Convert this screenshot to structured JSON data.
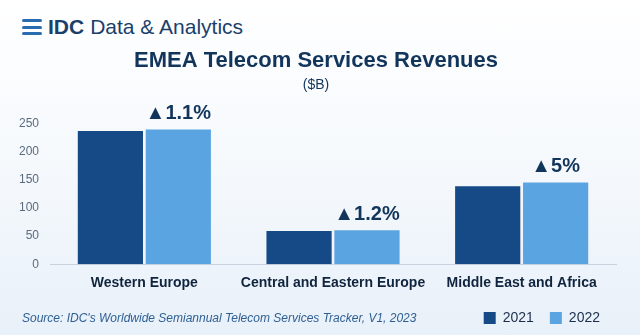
{
  "chart_data": {
    "type": "bar",
    "brand": "IDC Data & Analytics",
    "title": "EMEA Telecom Services Revenues",
    "subtitle": "($B)",
    "categories": [
      "Western Europe",
      "Central and Eastern Europe",
      "Middle East and Africa"
    ],
    "series": [
      {
        "name": "2021",
        "color": "#164a86",
        "values": [
          236,
          59,
          138
        ]
      },
      {
        "name": "2022",
        "color": "#5ba4e2",
        "values": [
          239,
          60,
          145
        ]
      }
    ],
    "ylim": [
      0,
      250
    ],
    "yticks": [
      0,
      50,
      100,
      150,
      200,
      250
    ],
    "grid": false,
    "legend": "bottom right",
    "annotations": [
      {
        "category": "Western Europe",
        "text": "▲1.1%"
      },
      {
        "category": "Central and Eastern Europe",
        "text": "▲1.2%"
      },
      {
        "category": "Middle East and Africa",
        "text": "▲5%"
      }
    ],
    "source": "Source: IDC's Worldwide Semiannual Telecom Services Tracker, V1, 2023"
  }
}
